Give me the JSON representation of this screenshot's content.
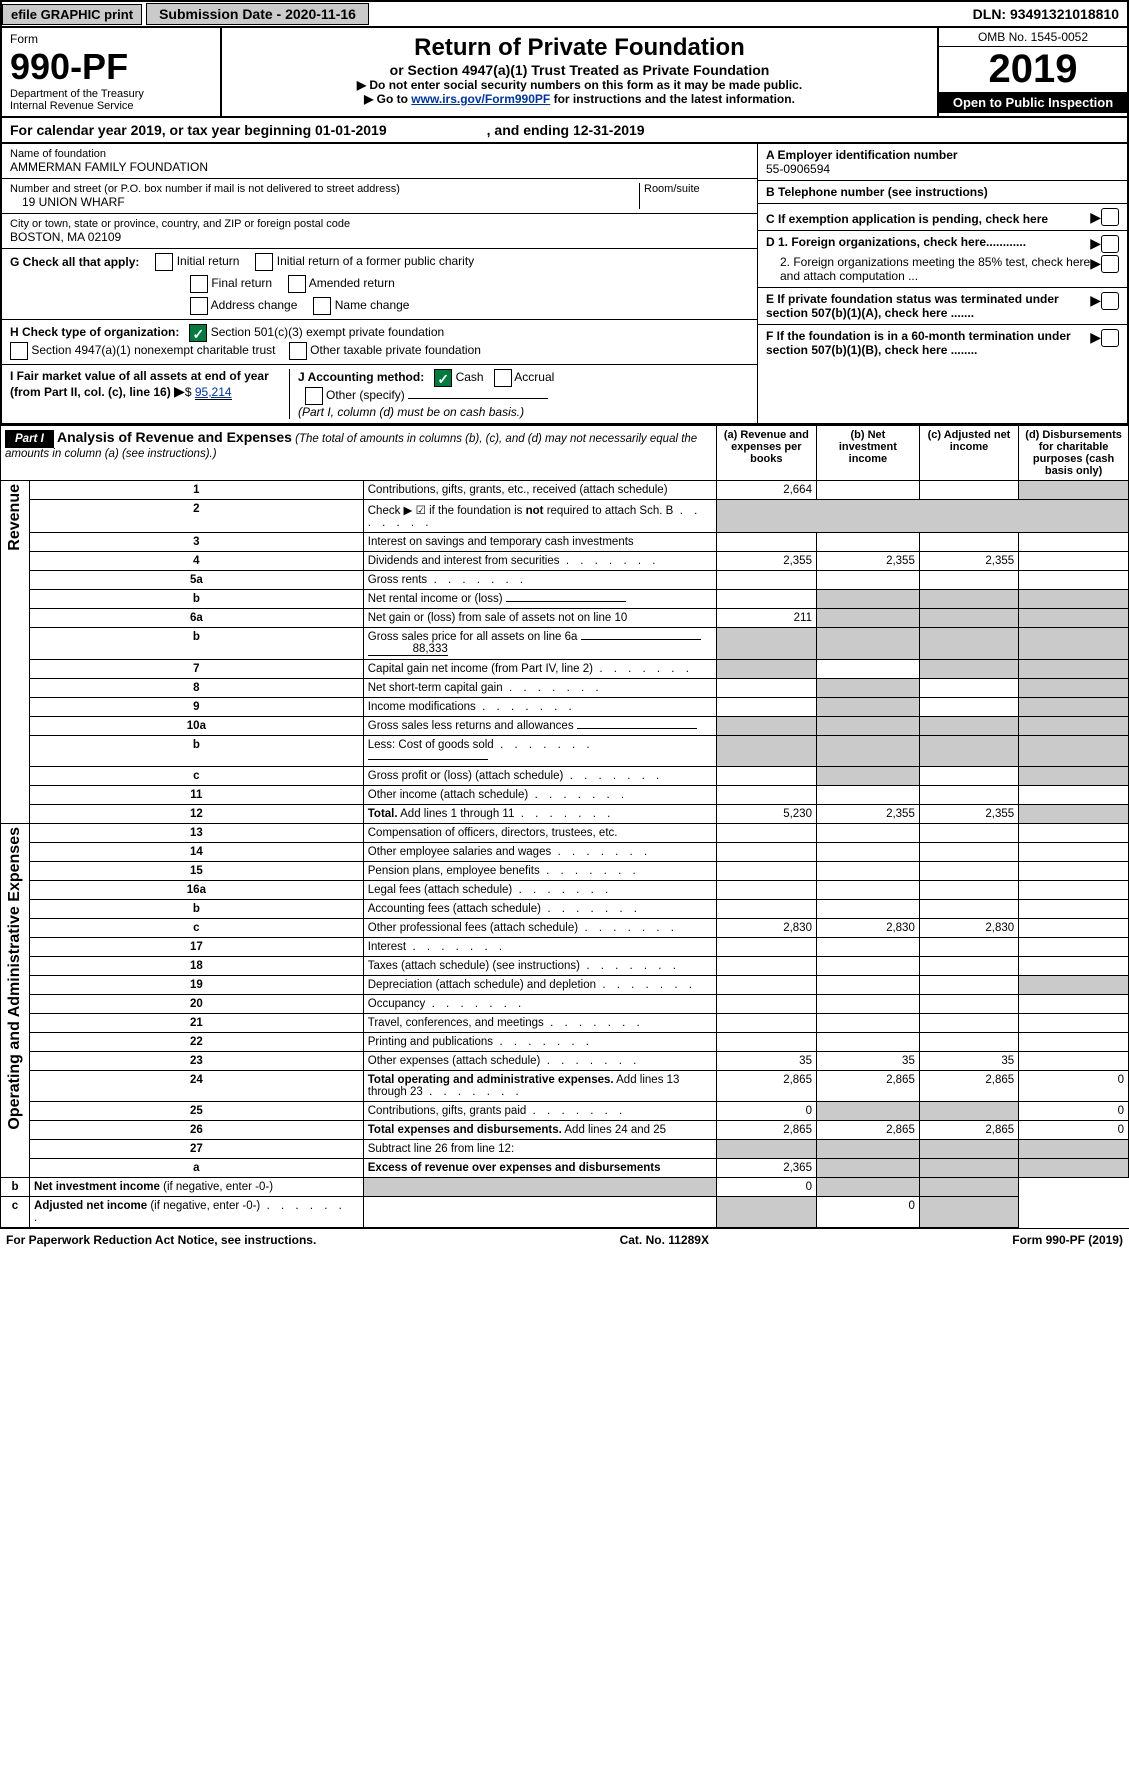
{
  "topbar": {
    "efile": "efile GRAPHIC print",
    "subLabel": "Submission Date - 2020-11-16",
    "dln": "DLN: 93491321018810"
  },
  "header": {
    "form": "Form",
    "formNum": "990-PF",
    "dept": "Department of the Treasury",
    "irs": "Internal Revenue Service",
    "title": "Return of Private Foundation",
    "sub": "or Section 4947(a)(1) Trust Treated as Private Foundation",
    "instr1": "▶ Do not enter social security numbers on this form as it may be made public.",
    "instr2": "▶ Go to ",
    "link": "www.irs.gov/Form990PF",
    "instr3": " for instructions and the latest information.",
    "omb": "OMB No. 1545-0052",
    "year": "2019",
    "open": "Open to Public Inspection"
  },
  "calYear": {
    "text": "For calendar year 2019, or tax year beginning 01-01-2019",
    "end": ", and ending 12-31-2019"
  },
  "id": {
    "nameLbl": "Name of foundation",
    "name": "AMMERMAN FAMILY FOUNDATION",
    "addrLbl": "Number and street (or P.O. box number if mail is not delivered to street address)",
    "room": "Room/suite",
    "addr": "19 UNION WHARF",
    "cityLbl": "City or town, state or province, country, and ZIP or foreign postal code",
    "city": "BOSTON, MA  02109",
    "einLbl": "A Employer identification number",
    "ein": "55-0906594",
    "telLbl": "B Telephone number (see instructions)",
    "tel": "",
    "cLbl": "C If exemption application is pending, check here",
    "g": "G Check all that apply:",
    "g1": "Initial return",
    "g1b": "Initial return of a former public charity",
    "g2": "Final return",
    "g2b": "Amended return",
    "g3": "Address change",
    "g3b": "Name change",
    "h": "H Check type of organization:",
    "h1": "Section 501(c)(3) exempt private foundation",
    "h2": "Section 4947(a)(1) nonexempt charitable trust",
    "h3": "Other taxable private foundation",
    "i": "I Fair market value of all assets at end of year (from Part II, col. (c), line 16)",
    "iVal": "95,214",
    "j": "J Accounting method:",
    "j1": "Cash",
    "j2": "Accrual",
    "j3": "Other (specify)",
    "jNote": "(Part I, column (d) must be on cash basis.)",
    "d1": "D 1. Foreign organizations, check here............",
    "d2": "2. Foreign organizations meeting the 85% test, check here and attach computation ...",
    "e": "E  If private foundation status was terminated under section 507(b)(1)(A), check here .......",
    "f": "F  If the foundation is in a 60-month termination under section 507(b)(1)(B), check here ........"
  },
  "part1": {
    "label": "Part I",
    "title": "Analysis of Revenue and Expenses",
    "note": "(The total of amounts in columns (b), (c), and (d) may not necessarily equal the amounts in column (a) (see instructions).)",
    "colA": "(a)    Revenue and expenses per books",
    "colB": "(b)   Net investment income",
    "colC": "(c)   Adjusted net income",
    "colD": "(d)   Disbursements for charitable purposes (cash basis only)",
    "revenue": "Revenue",
    "opex": "Operating and Administrative Expenses"
  },
  "rows": [
    {
      "n": "1",
      "d": "Contributions, gifts, grants, etc., received (attach schedule)",
      "a": "2,664",
      "b": "",
      "c": "",
      "dGrey": true
    },
    {
      "n": "2",
      "d": "Check ▶ ☑ if the foundation is <b>not</b> required to attach Sch. B",
      "dots": true,
      "noVals": true
    },
    {
      "n": "3",
      "d": "Interest on savings and temporary cash investments",
      "a": "",
      "b": "",
      "c": ""
    },
    {
      "n": "4",
      "d": "Dividends and interest from securities",
      "dots": true,
      "a": "2,355",
      "b": "2,355",
      "c": "2,355"
    },
    {
      "n": "5a",
      "d": "Gross rents",
      "dots": true,
      "a": "",
      "b": "",
      "c": ""
    },
    {
      "n": "b",
      "d": "Net rental income or (loss)",
      "fill": true,
      "greyBCD": true
    },
    {
      "n": "6a",
      "d": "Net gain or (loss) from sale of assets not on line 10",
      "a": "211",
      "greyBCD": true
    },
    {
      "n": "b",
      "d": "Gross sales price for all assets on line 6a",
      "val": "88,333",
      "fill": true,
      "greyAll": true
    },
    {
      "n": "7",
      "d": "Capital gain net income (from Part IV, line 2)",
      "dots": true,
      "greyA": true,
      "b": "",
      "greyCD": true
    },
    {
      "n": "8",
      "d": "Net short-term capital gain",
      "dots": true,
      "greyAB": true,
      "c": "",
      "greyD": true
    },
    {
      "n": "9",
      "d": "Income modifications",
      "dots": true,
      "greyAB": true,
      "c": "",
      "greyD": true
    },
    {
      "n": "10a",
      "d": "Gross sales less returns and allowances",
      "fill": true,
      "greyAll": true
    },
    {
      "n": "b",
      "d": "Less: Cost of goods sold",
      "dots": true,
      "fill": true,
      "greyAll": true
    },
    {
      "n": "c",
      "d": "Gross profit or (loss) (attach schedule)",
      "dots": true,
      "a": "",
      "greyB": true,
      "c": "",
      "greyD": true
    },
    {
      "n": "11",
      "d": "Other income (attach schedule)",
      "dots": true,
      "a": "",
      "b": "",
      "c": ""
    },
    {
      "n": "12",
      "d": "<b>Total.</b> Add lines 1 through 11",
      "dots": true,
      "a": "5,230",
      "b": "2,355",
      "c": "2,355",
      "dGrey": true
    },
    {
      "n": "13",
      "d": "Compensation of officers, directors, trustees, etc.",
      "a": "",
      "b": "",
      "c": "",
      "dd": ""
    },
    {
      "n": "14",
      "d": "Other employee salaries and wages",
      "dots": true,
      "a": "",
      "b": "",
      "c": "",
      "dd": ""
    },
    {
      "n": "15",
      "d": "Pension plans, employee benefits",
      "dots": true,
      "a": "",
      "b": "",
      "c": "",
      "dd": ""
    },
    {
      "n": "16a",
      "d": "Legal fees (attach schedule)",
      "dots": true,
      "a": "",
      "b": "",
      "c": "",
      "dd": ""
    },
    {
      "n": "b",
      "d": "Accounting fees (attach schedule)",
      "dots": true,
      "a": "",
      "b": "",
      "c": "",
      "dd": ""
    },
    {
      "n": "c",
      "d": "Other professional fees (attach schedule)",
      "dots": true,
      "a": "2,830",
      "b": "2,830",
      "c": "2,830",
      "dd": ""
    },
    {
      "n": "17",
      "d": "Interest",
      "dots": true,
      "a": "",
      "b": "",
      "c": "",
      "dd": ""
    },
    {
      "n": "18",
      "d": "Taxes (attach schedule) (see instructions)",
      "dots": true,
      "a": "",
      "b": "",
      "c": "",
      "dd": ""
    },
    {
      "n": "19",
      "d": "Depreciation (attach schedule) and depletion",
      "dots": true,
      "a": "",
      "b": "",
      "c": "",
      "dGrey": true
    },
    {
      "n": "20",
      "d": "Occupancy",
      "dots": true,
      "a": "",
      "b": "",
      "c": "",
      "dd": ""
    },
    {
      "n": "21",
      "d": "Travel, conferences, and meetings",
      "dots": true,
      "a": "",
      "b": "",
      "c": "",
      "dd": ""
    },
    {
      "n": "22",
      "d": "Printing and publications",
      "dots": true,
      "a": "",
      "b": "",
      "c": "",
      "dd": ""
    },
    {
      "n": "23",
      "d": "Other expenses (attach schedule)",
      "dots": true,
      "a": "35",
      "b": "35",
      "c": "35",
      "dd": ""
    },
    {
      "n": "24",
      "d": "<b>Total operating and administrative expenses.</b> Add lines 13 through 23",
      "dots": true,
      "a": "2,865",
      "b": "2,865",
      "c": "2,865",
      "dd": "0"
    },
    {
      "n": "25",
      "d": "Contributions, gifts, grants paid",
      "dots": true,
      "a": "0",
      "greyBC": true,
      "dd": "0"
    },
    {
      "n": "26",
      "d": "<b>Total expenses and disbursements.</b> Add lines 24 and 25",
      "a": "2,865",
      "b": "2,865",
      "c": "2,865",
      "dd": "0"
    },
    {
      "n": "27",
      "d": "Subtract line 26 from line 12:",
      "greyAll": true
    },
    {
      "n": "a",
      "d": "<b>Excess of revenue over expenses and disbursements</b>",
      "a": "2,365",
      "greyBCD": true
    },
    {
      "n": "b",
      "d": "<b>Net investment income</b> (if negative, enter -0-)",
      "greyA": true,
      "b": "0",
      "greyCD": true
    },
    {
      "n": "c",
      "d": "<b>Adjusted net income</b> (if negative, enter -0-)",
      "dots": true,
      "greyAB": true,
      "c": "0",
      "greyD": true
    }
  ],
  "footer": {
    "left": "For Paperwork Reduction Act Notice, see instructions.",
    "mid": "Cat. No. 11289X",
    "right": "Form 990-PF (2019)"
  }
}
